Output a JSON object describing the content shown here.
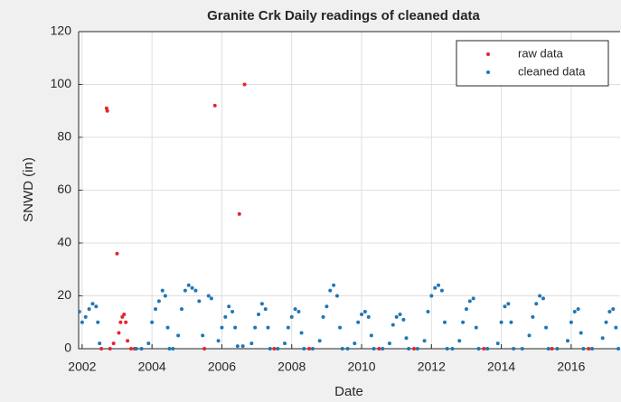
{
  "chart_data": {
    "type": "scatter",
    "title": "Granite Crk Daily readings of cleaned data",
    "xlabel": "Date",
    "ylabel": "SNWD (in)",
    "xlim": [
      2001.9,
      2017.4
    ],
    "xticks": [
      2002,
      2004,
      2006,
      2008,
      2010,
      2012,
      2014,
      2016
    ],
    "ylim": [
      0,
      120
    ],
    "yticks": [
      0,
      20,
      40,
      60,
      80,
      100,
      120
    ],
    "grid": true,
    "legend": "northeast",
    "series": [
      {
        "name": "raw data",
        "color": "#e8232f",
        "x": [
          2002.55,
          2002.7,
          2002.72,
          2002.8,
          2002.9,
          2003.0,
          2003.05,
          2003.1,
          2003.15,
          2003.2,
          2003.25,
          2003.3,
          2003.4,
          2003.5,
          2005.5,
          2005.8,
          2006.5,
          2006.65,
          2007.5,
          2008.5,
          2010.5,
          2011.5,
          2013.5,
          2015.45,
          2016.5
        ],
        "values": [
          0,
          91,
          90,
          0,
          2,
          36,
          6,
          10,
          12,
          13,
          10,
          3,
          0,
          0,
          0,
          92,
          51,
          100,
          0,
          0,
          0,
          0,
          0,
          0,
          0
        ]
      },
      {
        "name": "cleaned data",
        "color": "#1f77b4",
        "x": [
          2001.92,
          2002.0,
          2002.1,
          2002.2,
          2002.3,
          2002.4,
          2002.45,
          2002.5,
          2003.55,
          2003.7,
          2003.9,
          2004.0,
          2004.1,
          2004.2,
          2004.3,
          2004.38,
          2004.45,
          2004.5,
          2004.6,
          2004.75,
          2004.85,
          2004.95,
          2005.05,
          2005.15,
          2005.25,
          2005.35,
          2005.45,
          2005.62,
          2005.7,
          2005.9,
          2006.0,
          2006.1,
          2006.2,
          2006.3,
          2006.38,
          2006.45,
          2006.6,
          2006.85,
          2006.95,
          2007.05,
          2007.15,
          2007.25,
          2007.32,
          2007.38,
          2007.6,
          2007.8,
          2007.9,
          2008.0,
          2008.1,
          2008.2,
          2008.28,
          2008.35,
          2008.6,
          2008.8,
          2008.9,
          2009.0,
          2009.1,
          2009.2,
          2009.3,
          2009.38,
          2009.45,
          2009.6,
          2009.8,
          2009.9,
          2010.0,
          2010.1,
          2010.2,
          2010.28,
          2010.35,
          2010.6,
          2010.8,
          2010.9,
          2011.0,
          2011.1,
          2011.2,
          2011.28,
          2011.35,
          2011.6,
          2011.8,
          2011.9,
          2012.0,
          2012.1,
          2012.2,
          2012.3,
          2012.38,
          2012.45,
          2012.6,
          2012.8,
          2012.9,
          2013.0,
          2013.1,
          2013.2,
          2013.28,
          2013.35,
          2013.6,
          2013.9,
          2014.0,
          2014.1,
          2014.2,
          2014.28,
          2014.35,
          2014.6,
          2014.8,
          2014.9,
          2015.0,
          2015.1,
          2015.2,
          2015.28,
          2015.35,
          2015.6,
          2015.9,
          2016.0,
          2016.1,
          2016.2,
          2016.28,
          2016.35,
          2016.6,
          2016.9,
          2017.0,
          2017.1,
          2017.2,
          2017.28,
          2017.35
        ],
        "values": [
          14,
          10,
          12,
          15,
          17,
          16,
          10,
          2,
          0,
          0,
          2,
          10,
          15,
          18,
          22,
          20,
          8,
          0,
          0,
          5,
          15,
          22,
          24,
          23,
          22,
          18,
          5,
          20,
          19,
          3,
          8,
          12,
          16,
          14,
          8,
          1,
          1,
          2,
          8,
          13,
          17,
          15,
          8,
          0,
          0,
          2,
          8,
          12,
          15,
          14,
          6,
          0,
          0,
          3,
          12,
          16,
          22,
          24,
          20,
          8,
          0,
          0,
          2,
          10,
          13,
          14,
          12,
          5,
          0,
          0,
          2,
          9,
          12,
          13,
          11,
          4,
          0,
          0,
          3,
          14,
          20,
          23,
          24,
          22,
          10,
          0,
          0,
          3,
          10,
          15,
          18,
          19,
          8,
          0,
          0,
          2,
          10,
          16,
          17,
          10,
          0,
          0,
          5,
          12,
          17,
          20,
          19,
          8,
          0,
          0,
          3,
          10,
          14,
          15,
          6,
          0,
          0,
          4,
          10,
          14,
          15,
          8,
          0
        ]
      }
    ]
  }
}
